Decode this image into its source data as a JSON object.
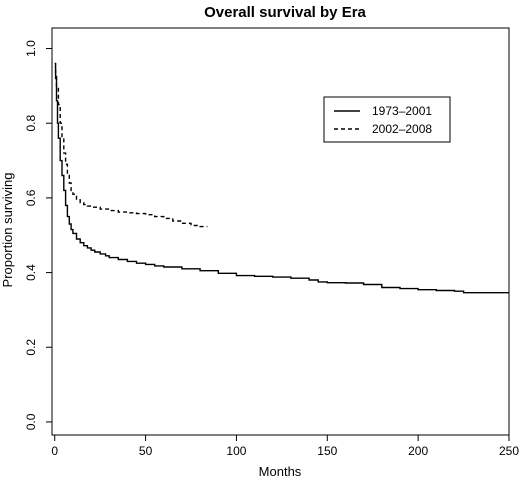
{
  "chart_data": {
    "type": "line",
    "title": "Overall survival by Era",
    "xlabel": "Months",
    "ylabel": "Proportion surviving",
    "xlim": [
      0,
      250
    ],
    "ylim": [
      0,
      1
    ],
    "x_ticks": [
      0,
      50,
      100,
      150,
      200,
      250
    ],
    "y_ticks": [
      0.0,
      0.2,
      0.4,
      0.6,
      0.8,
      1.0
    ],
    "x_tick_labels": [
      "0",
      "50",
      "100",
      "150",
      "200",
      "250"
    ],
    "y_tick_labels": [
      "0.0",
      "0.2",
      "0.4",
      "0.6",
      "0.8",
      "1.0"
    ],
    "step": true,
    "grid": false,
    "legend_position": "top-right",
    "series": [
      {
        "name": "1973–2001",
        "line_style": "solid",
        "color": "#000000",
        "x": [
          0,
          0.5,
          1,
          1.5,
          2,
          3,
          4,
          5,
          6,
          7,
          8,
          9,
          10,
          12,
          14,
          16,
          18,
          20,
          22,
          25,
          28,
          30,
          35,
          40,
          45,
          50,
          55,
          60,
          70,
          80,
          90,
          100,
          110,
          120,
          130,
          140,
          145,
          150,
          160,
          170,
          180,
          190,
          200,
          210,
          220,
          225,
          230,
          240,
          250
        ],
        "y": [
          0.95,
          0.92,
          0.86,
          0.8,
          0.76,
          0.7,
          0.66,
          0.62,
          0.58,
          0.55,
          0.53,
          0.515,
          0.505,
          0.49,
          0.48,
          0.472,
          0.466,
          0.46,
          0.455,
          0.45,
          0.445,
          0.44,
          0.435,
          0.43,
          0.425,
          0.422,
          0.418,
          0.415,
          0.41,
          0.405,
          0.398,
          0.392,
          0.39,
          0.388,
          0.385,
          0.38,
          0.375,
          0.373,
          0.372,
          0.368,
          0.36,
          0.357,
          0.354,
          0.352,
          0.35,
          0.346,
          0.346,
          0.346,
          0.346
        ]
      },
      {
        "name": "2002–2008",
        "line_style": "dashed",
        "color": "#000000",
        "x": [
          0,
          0.5,
          1,
          2,
          3,
          4,
          5,
          6,
          7,
          8,
          9,
          10,
          12,
          14,
          16,
          18,
          20,
          25,
          30,
          35,
          40,
          45,
          50,
          55,
          60,
          65,
          70,
          75,
          80,
          84
        ],
        "y": [
          0.96,
          0.93,
          0.9,
          0.85,
          0.8,
          0.76,
          0.72,
          0.69,
          0.66,
          0.64,
          0.62,
          0.61,
          0.595,
          0.587,
          0.582,
          0.578,
          0.575,
          0.57,
          0.566,
          0.562,
          0.56,
          0.558,
          0.555,
          0.55,
          0.545,
          0.538,
          0.532,
          0.526,
          0.523,
          0.523
        ]
      }
    ]
  }
}
